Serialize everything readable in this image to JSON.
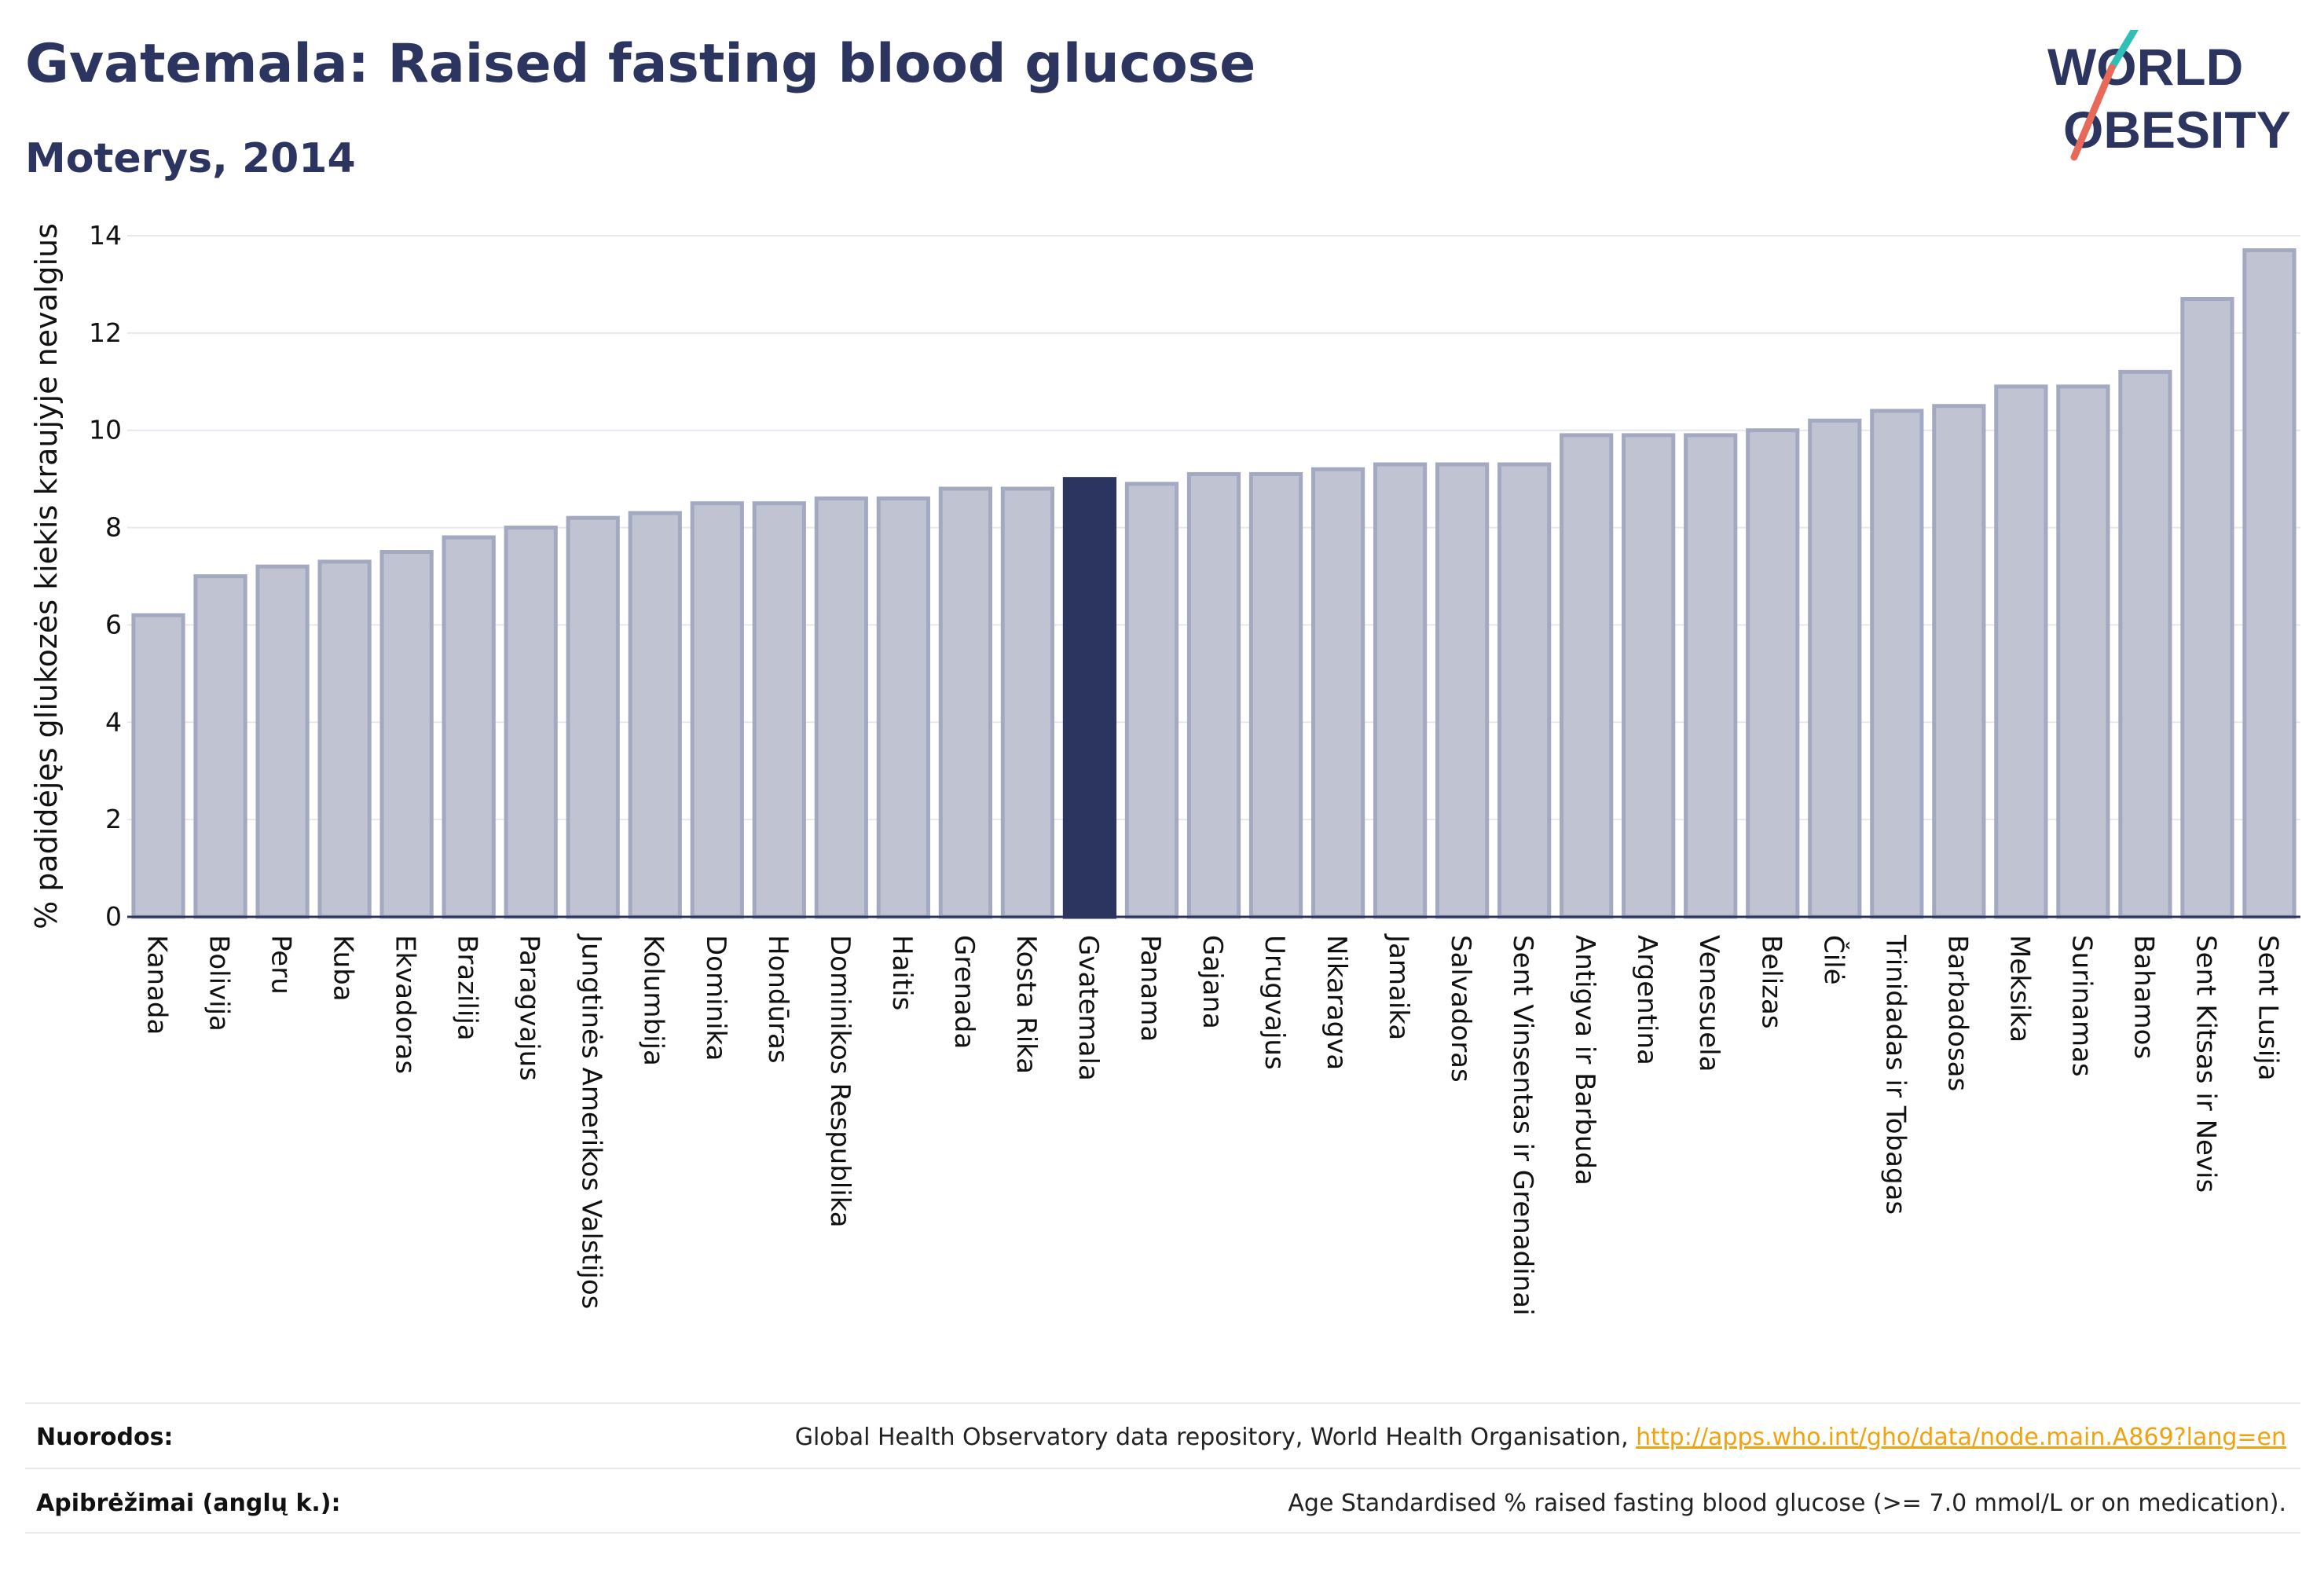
{
  "header": {
    "title": "Gvatemala: Raised fasting blood glucose",
    "subtitle": "Moterys, 2014"
  },
  "logo": {
    "line1": "WORLD",
    "line2": "OBESITY",
    "accent_teal": "#2fbfb7",
    "accent_red": "#e8685a"
  },
  "colors": {
    "bar": "#c0c4d2",
    "bar_stroke": "#a3a9c0",
    "highlight": "#2b3560",
    "axis": "#2b3560",
    "grid": "#e6e8ef"
  },
  "chart_data": {
    "type": "bar",
    "title": "Gvatemala: Raised fasting blood glucose",
    "subtitle": "Moterys, 2014",
    "ylabel": "% padidėjęs gliukozės kiekis kraujyje nevalgius",
    "xlabel": "",
    "ylim": [
      0,
      14
    ],
    "yticks": [
      0,
      2,
      4,
      6,
      8,
      10,
      12,
      14
    ],
    "grid": true,
    "highlight": "Gvatemala",
    "categories": [
      "Kanada",
      "Bolivija",
      "Peru",
      "Kuba",
      "Ekvadoras",
      "Brazilija",
      "Paragvajus",
      "Jungtinės Amerikos Valstijos",
      "Kolumbija",
      "Dominika",
      "Hondūras",
      "Dominikos Respublika",
      "Haitis",
      "Grenada",
      "Kosta Rika",
      "Gvatemala",
      "Panama",
      "Gajana",
      "Urugvajus",
      "Nikaragva",
      "Jamaika",
      "Salvadoras",
      "Sent Vinsentas ir Grenadinai",
      "Antigva ir Barbuda",
      "Argentina",
      "Venesuela",
      "Belizas",
      "Čilė",
      "Trinidadas ir Tobagas",
      "Barbadosas",
      "Meksika",
      "Surinamas",
      "Bahamos",
      "Sent Kitsas ir Nevis",
      "Sent Lusija"
    ],
    "values": [
      6.2,
      7.0,
      7.2,
      7.3,
      7.5,
      7.8,
      8.0,
      8.2,
      8.3,
      8.5,
      8.5,
      8.6,
      8.6,
      8.8,
      8.8,
      9.0,
      8.9,
      9.1,
      9.1,
      9.2,
      9.3,
      9.3,
      9.3,
      9.9,
      9.9,
      9.9,
      10.0,
      10.2,
      10.4,
      10.5,
      10.9,
      10.9,
      11.2,
      12.7,
      13.7
    ]
  },
  "footer": {
    "sources_label": "Nuorodos:",
    "sources_text": "Global Health Observatory data repository, World Health Organisation, ",
    "sources_link": "http://apps.who.int/gho/data/node.main.A869?lang=en",
    "definitions_label": "Apibrėžimai (anglų k.):",
    "definitions_text": "Age Standardised % raised fasting blood glucose (>= 7.0 mmol/L or on medication)."
  }
}
